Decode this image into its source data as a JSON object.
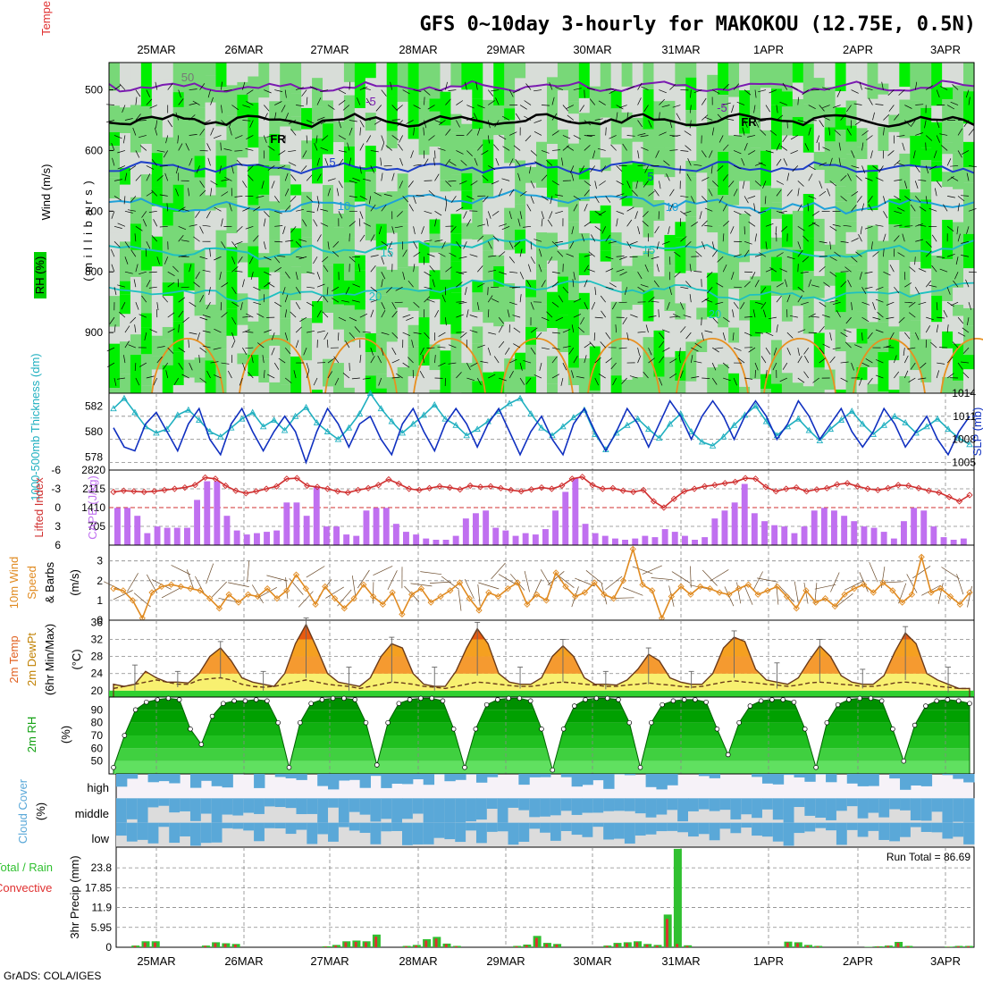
{
  "title": "GFS 0~10day 3-hourly for MAKOKOU (12.75E, 0.5N)",
  "credit": "GrADS: COLA/IGES",
  "dates": [
    "25MAR",
    "26MAR",
    "27MAR",
    "28MAR",
    "29MAR",
    "30MAR",
    "31MAR",
    "1APR",
    "2APR",
    "3APR"
  ],
  "colors": {
    "rh_light": "#d8ddd8",
    "rh_mid": "#78d878",
    "rh_bright": "#00f000",
    "isotherm_cold": "#7a1ab0",
    "isotherm_freeze": "#000000",
    "isotherm_mid": "#1e40c8",
    "isotherm_light": "#1ea0d8",
    "isotherm_warm": "#1ec0c0",
    "isotherm_hot": "#e89020",
    "slp": "#1030c0",
    "thickness": "#20b0c0",
    "li": "#d03030",
    "cape": "#c070f0",
    "wind": "#e08a20",
    "temp_fill_hi": "#e85a10",
    "temp_fill_mid": "#f5a020",
    "temp_fill_low": "#f8f070",
    "rh2m_dark": "#009000",
    "cloud": "#5aa8d8",
    "precip_total": "#30c030",
    "precip_conv": "#e03030"
  },
  "panels": {
    "upper": {
      "axis_label_1": "Wind (m/s)",
      "axis_label_2": "Temperature (°C)",
      "axis_label_3": "RH (%)",
      "axis_label_4": "( m i l l i b a r s )",
      "yticks": [
        "500",
        "600",
        "700",
        "800",
        "900"
      ],
      "contour_labels": [
        "50",
        "-5",
        "-5",
        "FR",
        "FR",
        "5",
        "5",
        "10",
        "10",
        "15",
        "15",
        "20",
        "20"
      ]
    },
    "slp": {
      "label_left": "1000-500mb Thickness (dm)",
      "label_right": "SLP (mb)",
      "left_ticks": [
        "582",
        "580",
        "578"
      ],
      "right_ticks": [
        "1014",
        "1011",
        "1008",
        "1005"
      ]
    },
    "cape": {
      "label_left": "Lifted Index",
      "label_right": "CAPE (J/kg)",
      "left_ticks": [
        "-6",
        "-3",
        "0",
        "3",
        "6"
      ],
      "right_ticks": [
        "2820",
        "2115",
        "1410",
        "705"
      ]
    },
    "wind10": {
      "label_1": "10m Wind",
      "label_2": "Speed",
      "label_3": "& Barbs",
      "unit": "(m/s)",
      "ticks": [
        "3",
        "2",
        "1",
        "0"
      ]
    },
    "temp": {
      "label_1": "2m Temp",
      "label_2": "2m DewPt",
      "label_3": "(6hr Min/Max)",
      "unit": "(°C)",
      "ticks": [
        "36",
        "32",
        "28",
        "24",
        "20"
      ]
    },
    "rh2m": {
      "label": "2m RH",
      "unit": "(%)",
      "ticks": [
        "90",
        "80",
        "70",
        "60",
        "50"
      ]
    },
    "cloud": {
      "label": "Cloud Cover",
      "unit": "(%)",
      "levels": [
        "high",
        "middle",
        "low"
      ]
    },
    "precip": {
      "label_1": "Total / Rain",
      "label_2": "Convective",
      "label_3": "3hr Precip (mm)",
      "ticks": [
        "23.8",
        "17.85",
        "11.9",
        "5.95",
        "0"
      ],
      "run_total": "Run Total = 86.69"
    }
  },
  "chart_data": [
    {
      "type": "line",
      "name": "slp",
      "x_dates": [
        "25MAR",
        "26MAR",
        "27MAR",
        "28MAR",
        "29MAR",
        "30MAR",
        "31MAR",
        "1APR",
        "2APR",
        "3APR"
      ],
      "slp_mb": [
        1009.5,
        1007,
        1006.5,
        1010,
        1011.5,
        1009,
        1006.5,
        1010,
        1012,
        1008,
        1006,
        1010,
        1012,
        1009,
        1006.5,
        1009,
        1011,
        1009,
        1005,
        1009,
        1012,
        1010,
        1007,
        1010,
        1011,
        1008,
        1006,
        1010,
        1012,
        1009,
        1006.5,
        1010,
        1012,
        1010,
        1007,
        1010,
        1012,
        1009,
        1006,
        1009,
        1011,
        1008,
        1006,
        1010,
        1012,
        1009,
        1006.5,
        1009,
        1012,
        1010,
        1007,
        1010,
        1013,
        1011,
        1008,
        1011,
        1013,
        1011,
        1008,
        1011,
        1013,
        1011,
        1008,
        1010,
        1013,
        1011,
        1008,
        1010,
        1012,
        1009,
        1007,
        1009,
        1012,
        1010,
        1007,
        1009,
        1011,
        1008,
        1006,
        1009,
        1011
      ],
      "thickness_dm": [
        581.8,
        582.6,
        581.5,
        580.4,
        579.9,
        580.2,
        581.3,
        581.7,
        580.9,
        580.0,
        579.6,
        580.3,
        581.0,
        581.5,
        580.4,
        580.9,
        580.1,
        581.2,
        581.9,
        580.7,
        580.0,
        579.4,
        580.3,
        581.4,
        583.0,
        581.8,
        580.8,
        579.9,
        580.6,
        581.3,
        582.1,
        581.0,
        580.5,
        579.7,
        580.2,
        580.8,
        581.6,
        582.2,
        582.6,
        581.4,
        580.3,
        579.7,
        580.4,
        581.1,
        581.7,
        579.8,
        578.6,
        579.9,
        580.5,
        581.0,
        580.2,
        579.5,
        580.6,
        581.4,
        580.0,
        579.2,
        578.9,
        579.6,
        580.5,
        581.3,
        582.0,
        580.8,
        579.7,
        580.4,
        581.0,
        580.1,
        579.3,
        580.2,
        580.9,
        581.6,
        580.6,
        579.8,
        580.5,
        581.2,
        580.7,
        579.9,
        580.4,
        581.0,
        580.2,
        579.5,
        579.0
      ],
      "ylim_slp": [
        1004,
        1014
      ],
      "ylim_thickness": [
        577,
        583
      ]
    },
    {
      "type": "bar",
      "name": "cape",
      "cape_jkg": [
        1400,
        1400,
        1100,
        450,
        700,
        650,
        650,
        650,
        1700,
        2400,
        2400,
        1100,
        550,
        400,
        450,
        500,
        550,
        1600,
        1600,
        1100,
        2200,
        700,
        700,
        400,
        350,
        1300,
        1400,
        1400,
        800,
        500,
        400,
        250,
        200,
        200,
        350,
        1000,
        1200,
        1300,
        650,
        550,
        350,
        450,
        400,
        600,
        1300,
        2000,
        2500,
        800,
        450,
        350,
        250,
        200,
        250,
        350,
        300,
        600,
        500,
        350,
        200,
        300,
        1000,
        1300,
        1600,
        2300,
        1200,
        900,
        750,
        700,
        450,
        700,
        1300,
        1400,
        1300,
        1100,
        900,
        700,
        650,
        500,
        250,
        900,
        1400,
        1300,
        700,
        300,
        200,
        250
      ],
      "li_values": [
        -2.5,
        -2.7,
        -2.6,
        -2.5,
        -2.6,
        -2.8,
        -3,
        -3.2,
        -3.6,
        -4.8,
        -4.6,
        -3.5,
        -2.7,
        -2.3,
        -2.6,
        -3,
        -3.4,
        -4.6,
        -4.7,
        -3.5,
        -3.3,
        -3,
        -2.6,
        -2.4,
        -2.8,
        -3.1,
        -3.6,
        -4.5,
        -3.8,
        -3,
        -2.8,
        -3.1,
        -3.4,
        -3.2,
        -2.9,
        -3.5,
        -3.3,
        -3.4,
        -3.1,
        -2.8,
        -2.6,
        -2.9,
        -3.2,
        -3,
        -3.5,
        -4.6,
        -4.9,
        -3.6,
        -3,
        -3.1,
        -2.7,
        -2.5,
        -2.8,
        -1,
        0,
        -1.4,
        -2.6,
        -3,
        -3.4,
        -3.6,
        -3.9,
        -4.1,
        -4.7,
        -4.6,
        -3.3,
        -2.6,
        -3,
        -3.2,
        -2.6,
        -2.9,
        -3.1,
        -3.7,
        -3.9,
        -3.4,
        -3,
        -2.8,
        -3.1,
        -3.6,
        -3.5,
        -3.1,
        -2.7,
        -2.4,
        -1.7,
        -1,
        -2
      ],
      "ylim_cape": [
        0,
        2820
      ],
      "ylim_li": [
        6,
        -6
      ]
    },
    {
      "type": "line",
      "name": "wind10m",
      "speed_ms": [
        1.6,
        1.5,
        1.0,
        0.1,
        1.4,
        1.7,
        1.8,
        1.7,
        1.6,
        1.5,
        1.1,
        0.6,
        1.3,
        0.9,
        1.3,
        1.2,
        1.6,
        1.1,
        1.5,
        2.3,
        1.6,
        0.8,
        1.7,
        1.1,
        0.6,
        1.1,
        1.8,
        1.2,
        0.8,
        1.4,
        0.3,
        1.3,
        1.6,
        0.9,
        1.2,
        1.5,
        1.9,
        1.1,
        0.5,
        1.4,
        1.2,
        1.6,
        1.9,
        0.8,
        1.3,
        1.0,
        2.4,
        1.7,
        1.2,
        1.4,
        1.9,
        1.3,
        1.1,
        2.0,
        3.6,
        1.8,
        1.5,
        0.1,
        1.2,
        1.7,
        1.3,
        1.7,
        1.6,
        1.4,
        1.3,
        1.6,
        1.8,
        1.3,
        1.5,
        1.7,
        1.2,
        0.6,
        1.5,
        0.9,
        1.1,
        0.7,
        1.3,
        1.6,
        1.8,
        1.4,
        1.9,
        1.5,
        0.9,
        1.3,
        3.2,
        1.4,
        1.6,
        1.2,
        0.8,
        1.4
      ],
      "ylim": [
        0,
        3.8
      ]
    },
    {
      "type": "area",
      "name": "temp2m",
      "temp_c": [
        21.5,
        21.0,
        21.5,
        24.5,
        23.0,
        22.0,
        22.0,
        21.8,
        24.0,
        28.0,
        30.0,
        27.0,
        23.0,
        22.0,
        21.5,
        21.0,
        24.0,
        31.0,
        35.5,
        30.0,
        24.0,
        22.0,
        21.5,
        21.0,
        23.0,
        28.0,
        31.0,
        30.0,
        24.0,
        21.5,
        21.0,
        21.0,
        24.5,
        30.0,
        34.5,
        31.0,
        24.0,
        22.0,
        21.5,
        21.5,
        23.0,
        28.0,
        30.5,
        28.0,
        23.0,
        21.5,
        21.5,
        21.3,
        22.5,
        25.0,
        28.5,
        27.0,
        23.0,
        22.0,
        21.5,
        21.5,
        24.0,
        30.0,
        32.5,
        31.5,
        25.0,
        22.5,
        22.0,
        21.5,
        23.0,
        27.0,
        30.5,
        28.0,
        23.5,
        22.0,
        21.5,
        21.5,
        23.5,
        29.0,
        33.5,
        31.0,
        24.0,
        22.5,
        21.5,
        20.5,
        20.5
      ],
      "dewpt_c": [
        20.5,
        21.0,
        21.5,
        22.0,
        22.5,
        22.0,
        21.5,
        21.5,
        22.5,
        22.8,
        23.0,
        22.5,
        21.5,
        21.0,
        20.8,
        21.0,
        21.5,
        22.0,
        22.5,
        22.0,
        21.5,
        21.2,
        21.0,
        20.5,
        21.0,
        21.5,
        22.0,
        21.8,
        21.5,
        21.0,
        20.8,
        20.5,
        21.0,
        21.5,
        22.0,
        21.8,
        21.5,
        21.2,
        21.0,
        21.0,
        21.3,
        21.8,
        22.0,
        21.8,
        21.5,
        21.3,
        21.0,
        21.0,
        21.3,
        21.5,
        21.8,
        21.5,
        21.3,
        21.0,
        20.8,
        21.0,
        21.5,
        22.0,
        22.3,
        22.0,
        21.8,
        21.5,
        21.3,
        21.0,
        21.3,
        21.8,
        22.0,
        21.8,
        21.5,
        21.3,
        21.0,
        21.0,
        21.3,
        21.8,
        22.0,
        21.8,
        21.5,
        21.0,
        20.8,
        20.5,
        20.5
      ],
      "ylim": [
        18.5,
        36.5
      ]
    },
    {
      "type": "area",
      "name": "rh2m",
      "rh_pct": [
        45,
        70,
        90,
        96,
        98,
        99,
        98,
        75,
        63,
        85,
        95,
        97,
        97,
        98,
        97,
        80,
        45,
        80,
        95,
        98,
        99,
        99,
        98,
        80,
        47,
        80,
        95,
        98,
        99,
        99,
        97,
        75,
        45,
        75,
        94,
        98,
        99,
        99,
        97,
        75,
        43,
        75,
        93,
        98,
        99,
        99,
        98,
        80,
        45,
        80,
        94,
        97,
        98,
        98,
        96,
        75,
        55,
        80,
        93,
        97,
        98,
        98,
        96,
        75,
        45,
        80,
        94,
        98,
        99,
        99,
        97,
        75,
        50,
        78,
        93,
        97,
        98,
        97,
        95
      ],
      "ylim": [
        40,
        100
      ]
    },
    {
      "type": "heatmap",
      "name": "cloud_cover",
      "levels": [
        "high",
        "middle",
        "low"
      ],
      "note": "percent cover per 3hr step"
    },
    {
      "type": "bar",
      "name": "precip3hr",
      "total_mm": [
        0,
        0.5,
        1.8,
        1.8,
        0,
        0,
        0,
        0,
        0.5,
        1.5,
        1.2,
        1,
        0,
        0,
        0,
        0,
        0,
        0,
        0,
        0,
        0.3,
        0.7,
        1.8,
        2.0,
        1.8,
        3.8,
        0,
        0,
        0.4,
        0.7,
        2.4,
        3.1,
        1.1,
        0.4,
        0,
        0,
        0,
        0,
        0,
        0.4,
        0.8,
        3.4,
        1.3,
        1,
        0,
        0,
        0,
        0,
        0.5,
        1.3,
        1.5,
        1.8,
        1.0,
        0.7,
        9.8,
        29.5,
        0.6,
        0,
        0,
        0,
        0,
        0,
        0,
        0,
        0,
        0,
        1.7,
        1.5,
        0.7,
        0.4,
        0,
        0,
        0,
        0,
        0.1,
        0.3,
        0.5,
        1.6,
        0.4,
        0,
        0,
        0,
        0.2,
        0.4,
        0.4
      ],
      "conv_mm": [
        0,
        0.4,
        1.4,
        1.4,
        0,
        0,
        0,
        0,
        0.4,
        1.2,
        1.0,
        0.8,
        0,
        0,
        0,
        0,
        0,
        0,
        0,
        0,
        0.2,
        0.5,
        1.5,
        1.6,
        1.5,
        3.2,
        0,
        0,
        0.3,
        0.5,
        2.0,
        2.6,
        0.9,
        0.3,
        0,
        0,
        0,
        0,
        0,
        0.3,
        0.6,
        2.8,
        1.0,
        0.8,
        0,
        0,
        0,
        0,
        0.4,
        1.0,
        1.2,
        1.5,
        0.8,
        0.5,
        8.5,
        1.0,
        0.4,
        0,
        0,
        0,
        0,
        0,
        0,
        0,
        0,
        0,
        1.4,
        1.2,
        0.5,
        0.3,
        0,
        0,
        0,
        0,
        0,
        0.2,
        0.4,
        1.3,
        0.3,
        0,
        0,
        0,
        0.1,
        0.3,
        0.3
      ],
      "ylim": [
        0,
        30
      ]
    }
  ]
}
